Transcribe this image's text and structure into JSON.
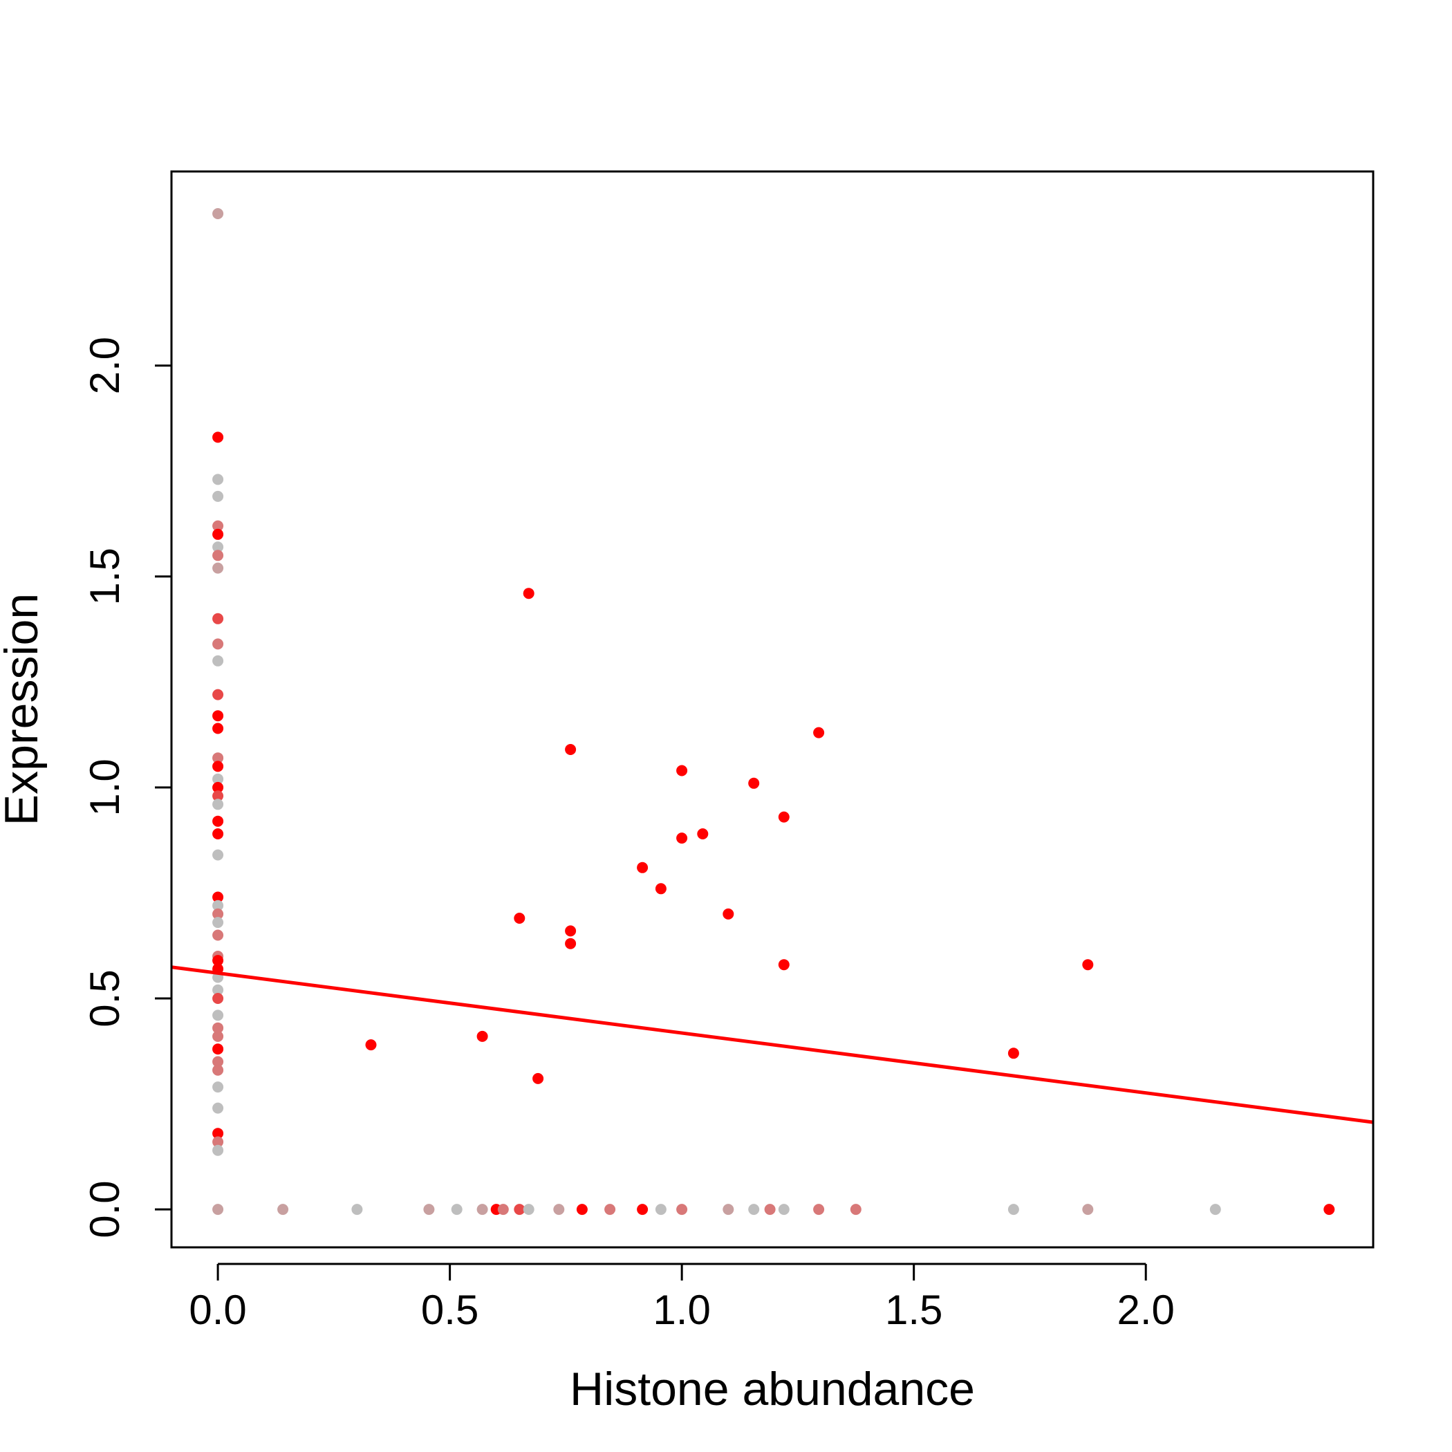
{
  "chart_data": {
    "type": "scatter",
    "title": "",
    "xlabel": "Histone abundance",
    "ylabel": "Expression",
    "xlim": [
      -0.1,
      2.49
    ],
    "ylim": [
      -0.09,
      2.46
    ],
    "x_ticks": [
      0.0,
      0.5,
      1.0,
      1.5,
      2.0
    ],
    "x_tick_labels": [
      "0.0",
      "0.5",
      "1.0",
      "1.5",
      "2.0"
    ],
    "y_ticks": [
      0.0,
      0.5,
      1.0,
      1.5,
      2.0
    ],
    "y_tick_labels": [
      "0.0",
      "0.5",
      "1.0",
      "1.5",
      "2.0"
    ],
    "grid": false,
    "legend": "none",
    "colors": {
      "gray": "#bebebe",
      "rosy": "#c8a0a0",
      "light_red": "#d87878",
      "mid_red": "#e84848",
      "red": "#ff0000",
      "fit_line": "#ff0000"
    },
    "points": [
      {
        "x": 0.0,
        "y": 2.36,
        "c": "rosy"
      },
      {
        "x": 0.0,
        "y": 1.83,
        "c": "red"
      },
      {
        "x": 0.0,
        "y": 1.73,
        "c": "gray"
      },
      {
        "x": 0.0,
        "y": 1.69,
        "c": "gray"
      },
      {
        "x": 0.0,
        "y": 1.62,
        "c": "light_red"
      },
      {
        "x": 0.0,
        "y": 1.6,
        "c": "red"
      },
      {
        "x": 0.0,
        "y": 1.57,
        "c": "gray"
      },
      {
        "x": 0.0,
        "y": 1.55,
        "c": "light_red"
      },
      {
        "x": 0.0,
        "y": 1.52,
        "c": "rosy"
      },
      {
        "x": 0.0,
        "y": 1.4,
        "c": "mid_red"
      },
      {
        "x": 0.0,
        "y": 1.34,
        "c": "light_red"
      },
      {
        "x": 0.0,
        "y": 1.3,
        "c": "gray"
      },
      {
        "x": 0.0,
        "y": 1.22,
        "c": "mid_red"
      },
      {
        "x": 0.0,
        "y": 1.17,
        "c": "red"
      },
      {
        "x": 0.0,
        "y": 1.14,
        "c": "red"
      },
      {
        "x": 0.0,
        "y": 1.07,
        "c": "light_red"
      },
      {
        "x": 0.0,
        "y": 1.05,
        "c": "red"
      },
      {
        "x": 0.0,
        "y": 1.02,
        "c": "gray"
      },
      {
        "x": 0.0,
        "y": 1.0,
        "c": "red"
      },
      {
        "x": 0.0,
        "y": 0.98,
        "c": "mid_red"
      },
      {
        "x": 0.0,
        "y": 0.96,
        "c": "gray"
      },
      {
        "x": 0.0,
        "y": 0.92,
        "c": "red"
      },
      {
        "x": 0.0,
        "y": 0.89,
        "c": "red"
      },
      {
        "x": 0.0,
        "y": 0.84,
        "c": "gray"
      },
      {
        "x": 0.0,
        "y": 0.74,
        "c": "red"
      },
      {
        "x": 0.0,
        "y": 0.72,
        "c": "gray"
      },
      {
        "x": 0.0,
        "y": 0.7,
        "c": "light_red"
      },
      {
        "x": 0.0,
        "y": 0.68,
        "c": "gray"
      },
      {
        "x": 0.0,
        "y": 0.65,
        "c": "light_red"
      },
      {
        "x": 0.0,
        "y": 0.6,
        "c": "light_red"
      },
      {
        "x": 0.0,
        "y": 0.59,
        "c": "red"
      },
      {
        "x": 0.0,
        "y": 0.57,
        "c": "red"
      },
      {
        "x": 0.0,
        "y": 0.55,
        "c": "gray"
      },
      {
        "x": 0.0,
        "y": 0.52,
        "c": "gray"
      },
      {
        "x": 0.0,
        "y": 0.5,
        "c": "mid_red"
      },
      {
        "x": 0.0,
        "y": 0.46,
        "c": "gray"
      },
      {
        "x": 0.0,
        "y": 0.43,
        "c": "light_red"
      },
      {
        "x": 0.0,
        "y": 0.41,
        "c": "light_red"
      },
      {
        "x": 0.0,
        "y": 0.38,
        "c": "red"
      },
      {
        "x": 0.0,
        "y": 0.35,
        "c": "light_red"
      },
      {
        "x": 0.0,
        "y": 0.33,
        "c": "light_red"
      },
      {
        "x": 0.0,
        "y": 0.29,
        "c": "gray"
      },
      {
        "x": 0.0,
        "y": 0.24,
        "c": "gray"
      },
      {
        "x": 0.0,
        "y": 0.18,
        "c": "red"
      },
      {
        "x": 0.0,
        "y": 0.16,
        "c": "light_red"
      },
      {
        "x": 0.0,
        "y": 0.14,
        "c": "gray"
      },
      {
        "x": 0.0,
        "y": 0.0,
        "c": "rosy"
      },
      {
        "x": 0.14,
        "y": 0.0,
        "c": "rosy"
      },
      {
        "x": 0.3,
        "y": 0.0,
        "c": "gray"
      },
      {
        "x": 0.455,
        "y": 0.0,
        "c": "rosy"
      },
      {
        "x": 0.515,
        "y": 0.0,
        "c": "gray"
      },
      {
        "x": 0.57,
        "y": 0.0,
        "c": "rosy"
      },
      {
        "x": 0.6,
        "y": 0.0,
        "c": "red"
      },
      {
        "x": 0.615,
        "y": 0.0,
        "c": "light_red"
      },
      {
        "x": 0.65,
        "y": 0.0,
        "c": "mid_red"
      },
      {
        "x": 0.67,
        "y": 0.0,
        "c": "gray"
      },
      {
        "x": 0.735,
        "y": 0.0,
        "c": "rosy"
      },
      {
        "x": 0.785,
        "y": 0.0,
        "c": "red"
      },
      {
        "x": 0.845,
        "y": 0.0,
        "c": "light_red"
      },
      {
        "x": 0.915,
        "y": 0.0,
        "c": "red"
      },
      {
        "x": 0.955,
        "y": 0.0,
        "c": "gray"
      },
      {
        "x": 1.0,
        "y": 0.0,
        "c": "light_red"
      },
      {
        "x": 1.1,
        "y": 0.0,
        "c": "rosy"
      },
      {
        "x": 1.155,
        "y": 0.0,
        "c": "gray"
      },
      {
        "x": 1.19,
        "y": 0.0,
        "c": "light_red"
      },
      {
        "x": 1.22,
        "y": 0.0,
        "c": "gray"
      },
      {
        "x": 1.295,
        "y": 0.0,
        "c": "light_red"
      },
      {
        "x": 1.375,
        "y": 0.0,
        "c": "light_red"
      },
      {
        "x": 1.715,
        "y": 0.0,
        "c": "gray"
      },
      {
        "x": 1.875,
        "y": 0.0,
        "c": "rosy"
      },
      {
        "x": 2.15,
        "y": 0.0,
        "c": "gray"
      },
      {
        "x": 2.395,
        "y": 0.0,
        "c": "red"
      },
      {
        "x": 0.67,
        "y": 1.46,
        "c": "red"
      },
      {
        "x": 0.76,
        "y": 1.09,
        "c": "red"
      },
      {
        "x": 1.0,
        "y": 1.04,
        "c": "red"
      },
      {
        "x": 1.155,
        "y": 1.01,
        "c": "red"
      },
      {
        "x": 1.295,
        "y": 1.13,
        "c": "red"
      },
      {
        "x": 1.22,
        "y": 0.93,
        "c": "red"
      },
      {
        "x": 1.045,
        "y": 0.89,
        "c": "red"
      },
      {
        "x": 1.0,
        "y": 0.88,
        "c": "red"
      },
      {
        "x": 0.915,
        "y": 0.81,
        "c": "red"
      },
      {
        "x": 0.955,
        "y": 0.76,
        "c": "red"
      },
      {
        "x": 1.1,
        "y": 0.7,
        "c": "red"
      },
      {
        "x": 0.65,
        "y": 0.69,
        "c": "red"
      },
      {
        "x": 0.76,
        "y": 0.66,
        "c": "red"
      },
      {
        "x": 0.76,
        "y": 0.63,
        "c": "red"
      },
      {
        "x": 1.22,
        "y": 0.58,
        "c": "red"
      },
      {
        "x": 1.875,
        "y": 0.58,
        "c": "red"
      },
      {
        "x": 0.57,
        "y": 0.41,
        "c": "red"
      },
      {
        "x": 0.33,
        "y": 0.39,
        "c": "red"
      },
      {
        "x": 1.715,
        "y": 0.37,
        "c": "red"
      },
      {
        "x": 0.69,
        "y": 0.31,
        "c": "red"
      }
    ],
    "fit_line": {
      "intercept": 0.56,
      "slope": -0.142
    }
  }
}
